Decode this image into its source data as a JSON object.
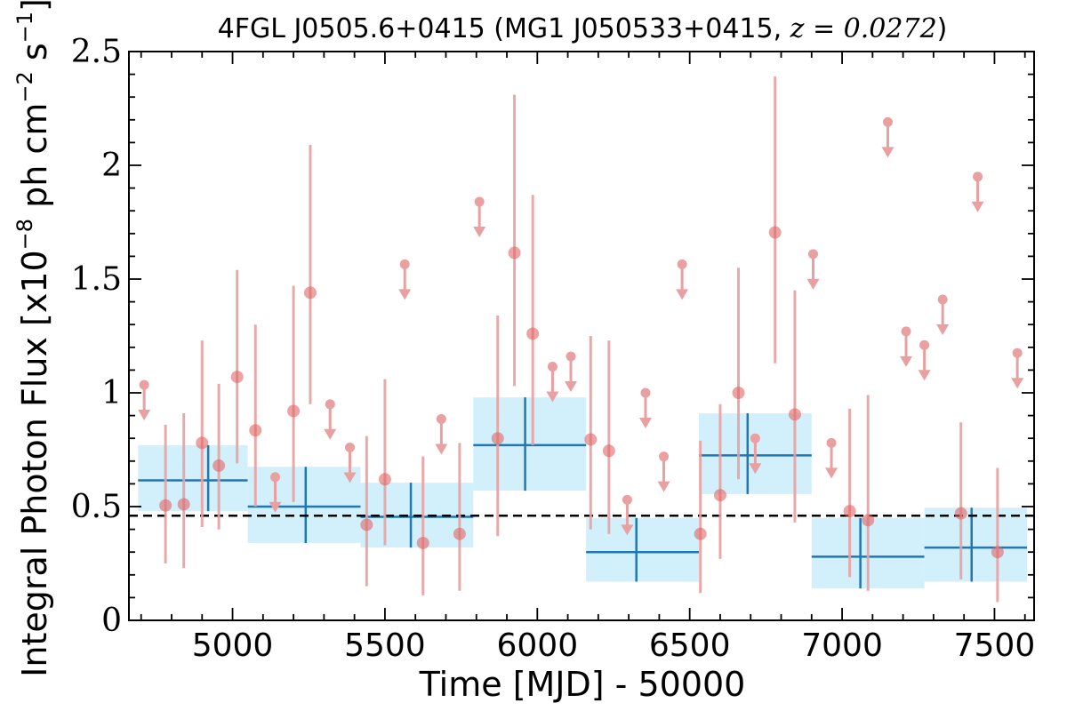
{
  "chart_data": {
    "type": "scatter",
    "title": {
      "prefix": "4FGL J0505.6+0415 (MG1 J050533+0415, ",
      "math": "z = 0.0272",
      "suffix": ")"
    },
    "xlabel": "Time [MJD] - 50000",
    "ylabel": {
      "base": "Integral Photon Flux [x10",
      "exp1": "−8",
      "mid": " ph cm",
      "exp2": "−2",
      "mid2": " s",
      "exp3": "−1",
      "end": "]"
    },
    "xlim": [
      4660,
      7630
    ],
    "ylim": [
      0,
      2.5
    ],
    "xticks": [
      {
        "value": 5000,
        "label": "5000"
      },
      {
        "value": 5500,
        "label": "5500"
      },
      {
        "value": 6000,
        "label": "6000"
      },
      {
        "value": 6500,
        "label": "6500"
      },
      {
        "value": 7000,
        "label": "7000"
      },
      {
        "value": 7500,
        "label": "7500"
      }
    ],
    "yticks": [
      {
        "value": 0,
        "label": "0"
      },
      {
        "value": 0.5,
        "label": "0.5"
      },
      {
        "value": 1,
        "label": "1"
      },
      {
        "value": 1.5,
        "label": "1.5"
      },
      {
        "value": 2,
        "label": "2"
      },
      {
        "value": 2.5,
        "label": "2.5"
      }
    ],
    "mean_flux": 0.46,
    "colors": {
      "points": "#e06666",
      "errorbars": "#e8a0a0",
      "bins_fill": "#cdeefc",
      "bins_line": "#1f77b4",
      "mean_line": "#000000"
    },
    "points": [
      {
        "x": 4780,
        "y": 0.505,
        "ylo": 0.25,
        "yhi": 0.86
      },
      {
        "x": 4840,
        "y": 0.51,
        "ylo": 0.23,
        "yhi": 0.91
      },
      {
        "x": 4900,
        "y": 0.78,
        "ylo": 0.41,
        "yhi": 1.23
      },
      {
        "x": 4955,
        "y": 0.68,
        "ylo": 0.4,
        "yhi": 1.04
      },
      {
        "x": 5015,
        "y": 1.07,
        "ylo": 0.69,
        "yhi": 1.54
      },
      {
        "x": 5075,
        "y": 0.835,
        "ylo": 0.5,
        "yhi": 1.3
      },
      {
        "x": 5200,
        "y": 0.92,
        "ylo": 0.52,
        "yhi": 1.47
      },
      {
        "x": 5255,
        "y": 1.44,
        "ylo": 0.95,
        "yhi": 2.09
      },
      {
        "x": 5440,
        "y": 0.42,
        "ylo": 0.15,
        "yhi": 0.81
      },
      {
        "x": 5500,
        "y": 0.62,
        "ylo": 0.33,
        "yhi": 1.06
      },
      {
        "x": 5625,
        "y": 0.34,
        "ylo": 0.11,
        "yhi": 0.72
      },
      {
        "x": 5745,
        "y": 0.38,
        "ylo": 0.13,
        "yhi": 0.78
      },
      {
        "x": 5870,
        "y": 0.8,
        "ylo": 0.37,
        "yhi": 1.34
      },
      {
        "x": 5925,
        "y": 1.615,
        "ylo": 1.03,
        "yhi": 2.31
      },
      {
        "x": 5985,
        "y": 1.26,
        "ylo": 0.77,
        "yhi": 1.87
      },
      {
        "x": 6175,
        "y": 0.795,
        "ylo": 0.4,
        "yhi": 1.25
      },
      {
        "x": 6235,
        "y": 0.745,
        "ylo": 0.38,
        "yhi": 1.23
      },
      {
        "x": 6535,
        "y": 0.38,
        "ylo": 0.12,
        "yhi": 0.79
      },
      {
        "x": 6600,
        "y": 0.55,
        "ylo": 0.27,
        "yhi": 0.95
      },
      {
        "x": 6660,
        "y": 1.0,
        "ylo": 0.62,
        "yhi": 1.55
      },
      {
        "x": 6780,
        "y": 1.705,
        "ylo": 1.13,
        "yhi": 2.39
      },
      {
        "x": 6845,
        "y": 0.905,
        "ylo": 0.43,
        "yhi": 1.45
      },
      {
        "x": 7025,
        "y": 0.48,
        "ylo": 0.19,
        "yhi": 0.93
      },
      {
        "x": 7085,
        "y": 0.44,
        "ylo": 0.13,
        "yhi": 0.99
      },
      {
        "x": 7390,
        "y": 0.47,
        "ylo": 0.18,
        "yhi": 0.87
      },
      {
        "x": 7510,
        "y": 0.3,
        "ylo": 0.08,
        "yhi": 0.67
      }
    ],
    "upper_limits": [
      {
        "x": 4710,
        "y": 1.035
      },
      {
        "x": 5140,
        "y": 0.63
      },
      {
        "x": 5320,
        "y": 0.95
      },
      {
        "x": 5385,
        "y": 0.76
      },
      {
        "x": 5565,
        "y": 1.565
      },
      {
        "x": 5685,
        "y": 0.885
      },
      {
        "x": 5810,
        "y": 1.84
      },
      {
        "x": 6050,
        "y": 1.115
      },
      {
        "x": 6110,
        "y": 1.16
      },
      {
        "x": 6295,
        "y": 0.53
      },
      {
        "x": 6355,
        "y": 1.0
      },
      {
        "x": 6415,
        "y": 0.72
      },
      {
        "x": 6475,
        "y": 1.565
      },
      {
        "x": 6715,
        "y": 0.8
      },
      {
        "x": 6905,
        "y": 1.61
      },
      {
        "x": 6965,
        "y": 0.78
      },
      {
        "x": 7150,
        "y": 2.19
      },
      {
        "x": 7210,
        "y": 1.27
      },
      {
        "x": 7270,
        "y": 1.21
      },
      {
        "x": 7330,
        "y": 1.41
      },
      {
        "x": 7445,
        "y": 1.95
      },
      {
        "x": 7575,
        "y": 1.175
      }
    ],
    "bins": [
      {
        "x0": 4690,
        "x1": 5050,
        "xc": 4920,
        "y": 0.615,
        "ylo": 0.48,
        "yhi": 0.77
      },
      {
        "x0": 5050,
        "x1": 5420,
        "xc": 5240,
        "y": 0.5,
        "ylo": 0.34,
        "yhi": 0.675
      },
      {
        "x0": 5420,
        "x1": 5790,
        "xc": 5585,
        "y": 0.455,
        "ylo": 0.32,
        "yhi": 0.605
      },
      {
        "x0": 5790,
        "x1": 6160,
        "xc": 5960,
        "y": 0.77,
        "ylo": 0.57,
        "yhi": 0.98
      },
      {
        "x0": 6160,
        "x1": 6530,
        "xc": 6325,
        "y": 0.3,
        "ylo": 0.17,
        "yhi": 0.45
      },
      {
        "x0": 6530,
        "x1": 6900,
        "xc": 6690,
        "y": 0.725,
        "ylo": 0.555,
        "yhi": 0.91
      },
      {
        "x0": 6900,
        "x1": 7270,
        "xc": 7060,
        "y": 0.28,
        "ylo": 0.14,
        "yhi": 0.45
      },
      {
        "x0": 7270,
        "x1": 7640,
        "xc": 7425,
        "y": 0.32,
        "ylo": 0.17,
        "yhi": 0.495
      }
    ]
  }
}
